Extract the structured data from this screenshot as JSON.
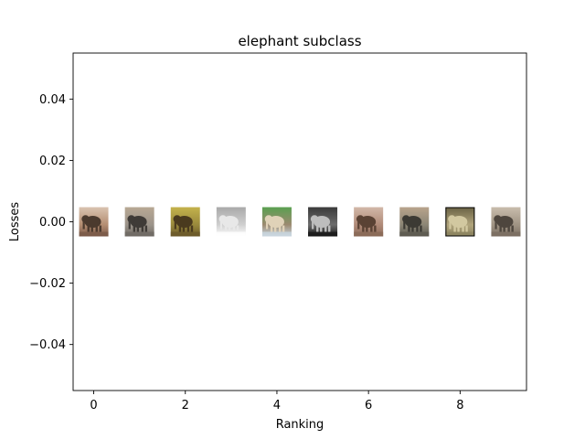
{
  "chart_data": {
    "type": "scatter",
    "title": "elephant subclass",
    "xlabel": "Ranking",
    "ylabel": "Losses",
    "xlim": [
      -0.45,
      9.45
    ],
    "ylim": [
      -0.055,
      0.055
    ],
    "x_ticks": [
      0,
      2,
      4,
      6,
      8
    ],
    "x_tick_labels": [
      "0",
      "2",
      "4",
      "6",
      "8"
    ],
    "y_ticks": [
      0.04,
      0.02,
      0.0,
      -0.02,
      -0.04
    ],
    "y_tick_labels": [
      "0.04",
      "0.02",
      "0.00",
      "−0.02",
      "−0.04"
    ],
    "grid": false,
    "legend": "none",
    "points": [
      {
        "x": 0,
        "y": 0.0,
        "thumbnail": "elephant photo, reddish-brown savanna",
        "colors": [
          "#7a5a48",
          "#b58e72",
          "#d9c3b0",
          "#4b3a2e"
        ]
      },
      {
        "x": 1,
        "y": 0.0,
        "thumbnail": "elephant photo, grey on dusty ground",
        "colors": [
          "#6f6a64",
          "#9c948a",
          "#b8a894",
          "#3f3b37"
        ]
      },
      {
        "x": 2,
        "y": 0.0,
        "thumbnail": "elephant photo, green-yellow grass",
        "colors": [
          "#6b5a2a",
          "#9a8a3c",
          "#c4b24c",
          "#4a3a1e"
        ]
      },
      {
        "x": 3,
        "y": 0.0,
        "thumbnail": "elephant illustration, light grey on white",
        "colors": [
          "#ffffff",
          "#cfcfcf",
          "#a9a9a9",
          "#e8e8e8"
        ]
      },
      {
        "x": 4,
        "y": 0.0,
        "thumbnail": "elephant photo, green grass and blue sky",
        "colors": [
          "#c9d6e0",
          "#9c8a70",
          "#5aa050",
          "#e0d2b8"
        ]
      },
      {
        "x": 5,
        "y": 0.0,
        "thumbnail": "elephant photo, dark black and white",
        "colors": [
          "#1a1a1a",
          "#6b6b6b",
          "#3a3a3a",
          "#bdbdbd"
        ]
      },
      {
        "x": 6,
        "y": 0.0,
        "thumbnail": "elephant photo, close-up pinkish-brown",
        "colors": [
          "#8a6a58",
          "#b08a78",
          "#d2b8a8",
          "#5a4234"
        ]
      },
      {
        "x": 7,
        "y": 0.0,
        "thumbnail": "elephant photo, grey elephant on reddish road",
        "colors": [
          "#5c5a50",
          "#8c8676",
          "#b8a48c",
          "#3c3a34"
        ]
      },
      {
        "x": 8,
        "y": 0.0,
        "thumbnail": "elephant photo, khaki scene with black border",
        "colors": [
          "#8c8460",
          "#b0a47c",
          "#6a6244",
          "#d2c8a0"
        ],
        "border": "#000000"
      },
      {
        "x": 9,
        "y": 0.0,
        "thumbnail": "elephant photo, grey-brown in bushland",
        "colors": [
          "#7a6e62",
          "#a09484",
          "#c8bcac",
          "#4e463e"
        ]
      }
    ]
  }
}
